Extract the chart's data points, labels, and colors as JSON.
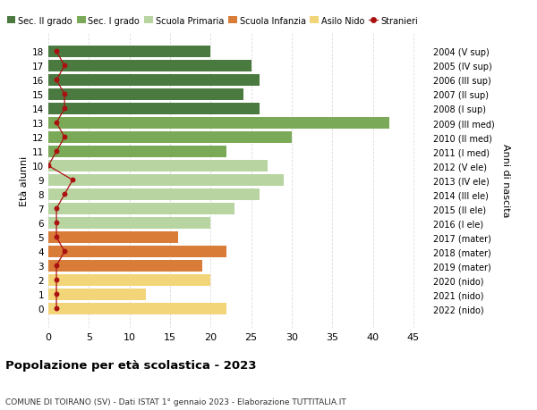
{
  "ages": [
    18,
    17,
    16,
    15,
    14,
    13,
    12,
    11,
    10,
    9,
    8,
    7,
    6,
    5,
    4,
    3,
    2,
    1,
    0
  ],
  "right_labels": [
    "2004 (V sup)",
    "2005 (IV sup)",
    "2006 (III sup)",
    "2007 (II sup)",
    "2008 (I sup)",
    "2009 (III med)",
    "2010 (II med)",
    "2011 (I med)",
    "2012 (V ele)",
    "2013 (IV ele)",
    "2014 (III ele)",
    "2015 (II ele)",
    "2016 (I ele)",
    "2017 (mater)",
    "2018 (mater)",
    "2019 (mater)",
    "2020 (nido)",
    "2021 (nido)",
    "2022 (nido)"
  ],
  "values": [
    20,
    25,
    26,
    24,
    26,
    42,
    30,
    22,
    27,
    29,
    26,
    23,
    20,
    16,
    22,
    19,
    20,
    12,
    22
  ],
  "bar_colors": [
    "#4a7a40",
    "#4a7a40",
    "#4a7a40",
    "#4a7a40",
    "#4a7a40",
    "#7aaa58",
    "#7aaa58",
    "#7aaa58",
    "#b8d4a0",
    "#b8d4a0",
    "#b8d4a0",
    "#b8d4a0",
    "#b8d4a0",
    "#d97c38",
    "#d97c38",
    "#d97c38",
    "#f2d479",
    "#f2d479",
    "#f2d479"
  ],
  "stranieri_values": [
    1,
    2,
    1,
    2,
    2,
    1,
    2,
    1,
    0,
    3,
    2,
    1,
    1,
    1,
    2,
    1,
    1,
    1,
    1
  ],
  "stranieri_color": "#aa1111",
  "legend_labels": [
    "Sec. II grado",
    "Sec. I grado",
    "Scuola Primaria",
    "Scuola Infanzia",
    "Asilo Nido",
    "Stranieri"
  ],
  "legend_colors": [
    "#4a7a40",
    "#7aaa58",
    "#b8d4a0",
    "#d97c38",
    "#f2d479",
    "#aa1111"
  ],
  "ylabel_left": "Età alunni",
  "ylabel_right": "Anni di nascita",
  "title": "Popolazione per età scolastica - 2023",
  "subtitle": "COMUNE DI TOIRANO (SV) - Dati ISTAT 1° gennaio 2023 - Elaborazione TUTTITALIA.IT",
  "xlim": [
    0,
    47
  ],
  "xticks": [
    0,
    5,
    10,
    15,
    20,
    25,
    30,
    35,
    40,
    45
  ],
  "background_color": "#ffffff",
  "grid_color": "#dddddd"
}
